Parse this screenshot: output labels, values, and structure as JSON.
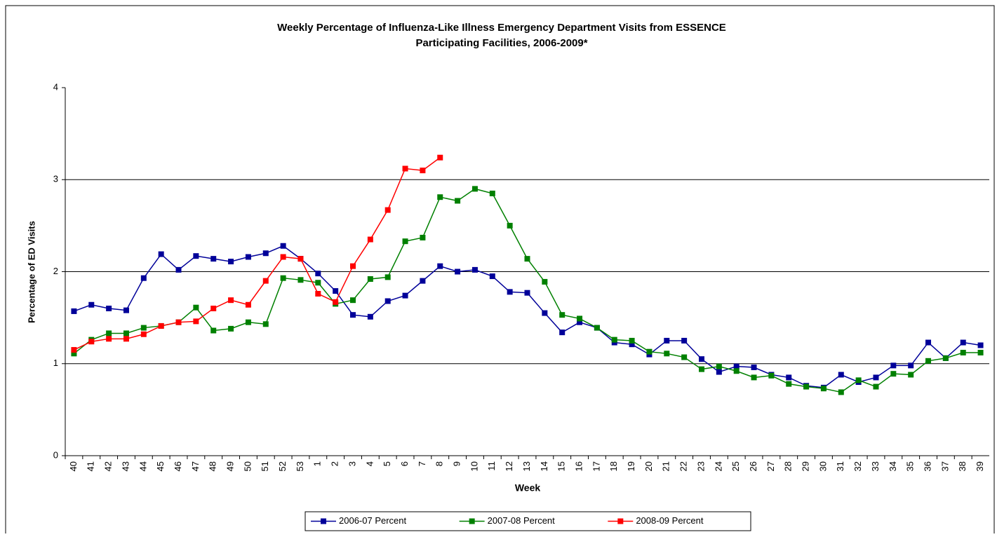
{
  "chart_data": {
    "type": "line",
    "title": [
      "Weekly Percentage of Influenza-Like Illness Emergency Department Visits from ESSENCE",
      "Participating Facilities, 2006-2009*"
    ],
    "x_label": "Week",
    "y_label": "Percentage of ED Visits",
    "categories": [
      "40",
      "41",
      "42",
      "43",
      "44",
      "45",
      "46",
      "47",
      "48",
      "49",
      "50",
      "51",
      "52",
      "53",
      "1",
      "2",
      "3",
      "4",
      "5",
      "6",
      "7",
      "8",
      "9",
      "10",
      "11",
      "12",
      "13",
      "14",
      "15",
      "16",
      "17",
      "18",
      "19",
      "20",
      "21",
      "22",
      "23",
      "24",
      "25",
      "26",
      "27",
      "28",
      "29",
      "30",
      "31",
      "32",
      "33",
      "34",
      "35",
      "36",
      "37",
      "38",
      "39"
    ],
    "series": [
      {
        "name": "2006-07 Percent",
        "color": "#000099",
        "values": [
          1.57,
          1.64,
          1.6,
          1.58,
          1.93,
          2.19,
          2.02,
          2.17,
          2.14,
          2.11,
          2.16,
          2.2,
          2.28,
          2.14,
          1.98,
          1.79,
          1.53,
          1.51,
          1.68,
          1.74,
          1.9,
          2.06,
          2.0,
          2.02,
          1.95,
          1.78,
          1.77,
          1.55,
          1.34,
          1.45,
          1.39,
          1.23,
          1.21,
          1.1,
          1.25,
          1.25,
          1.05,
          0.91,
          0.97,
          0.96,
          0.88,
          0.85,
          0.76,
          0.74,
          0.88,
          0.8,
          0.85,
          0.98,
          0.98,
          1.23,
          1.06,
          1.23,
          1.2
        ]
      },
      {
        "name": "2007-08 Percent",
        "color": "#008000",
        "values": [
          1.11,
          1.26,
          1.33,
          1.33,
          1.39,
          1.41,
          1.45,
          1.61,
          1.36,
          1.38,
          1.45,
          1.43,
          1.93,
          1.91,
          1.88,
          1.65,
          1.69,
          1.92,
          1.94,
          2.33,
          2.37,
          2.81,
          2.77,
          2.9,
          2.85,
          2.5,
          2.14,
          1.89,
          1.53,
          1.49,
          1.39,
          1.26,
          1.25,
          1.13,
          1.11,
          1.07,
          0.94,
          0.97,
          0.92,
          0.85,
          0.87,
          0.78,
          0.75,
          0.73,
          0.69,
          0.82,
          0.75,
          0.89,
          0.88,
          1.03,
          1.06,
          1.12,
          1.12
        ]
      },
      {
        "name": "2008-09 Percent",
        "color": "#ff0000",
        "values": [
          1.15,
          1.24,
          1.27,
          1.27,
          1.32,
          1.41,
          1.45,
          1.46,
          1.6,
          1.69,
          1.64,
          1.9,
          2.16,
          2.14,
          1.76,
          1.67,
          2.06,
          2.35,
          2.67,
          3.12,
          3.1,
          3.24,
          null,
          null,
          null,
          null,
          null,
          null,
          null,
          null,
          null,
          null,
          null,
          null,
          null,
          null,
          null,
          null,
          null,
          null,
          null,
          null,
          null,
          null,
          null,
          null,
          null,
          null,
          null,
          null,
          null,
          null,
          null
        ]
      }
    ],
    "ylim": [
      0,
      4
    ],
    "yticks": [
      0,
      1,
      2,
      3,
      4
    ],
    "grid": true,
    "legend": "bottom"
  }
}
